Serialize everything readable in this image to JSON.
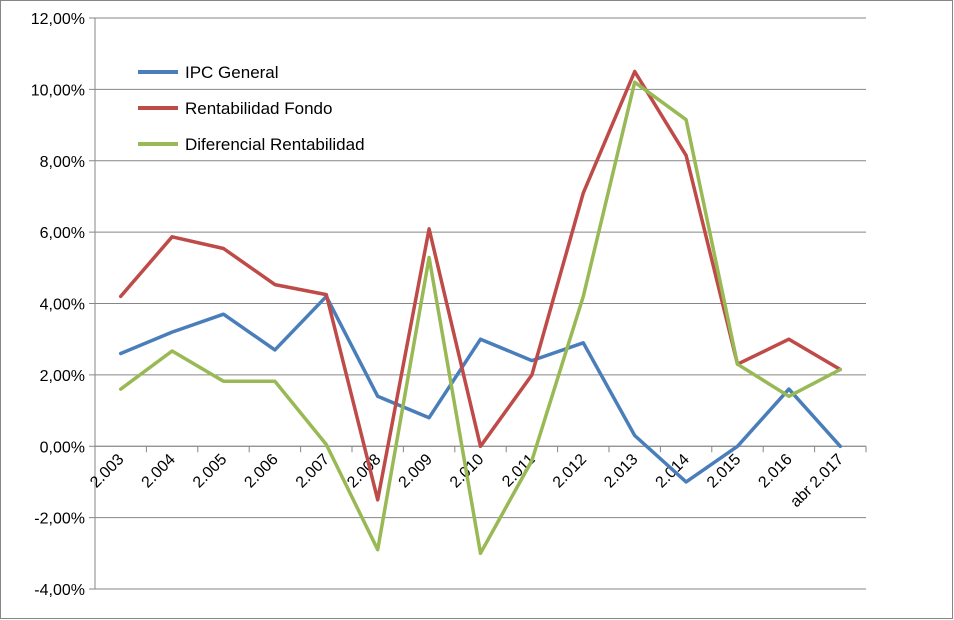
{
  "chart_data": {
    "type": "line",
    "categories": [
      "2.003",
      "2.004",
      "2.005",
      "2.006",
      "2.007",
      "2.008",
      "2.009",
      "2.010",
      "2.011",
      "2.012",
      "2.013",
      "2.014",
      "2.015",
      "2.016",
      "abr 2.017"
    ],
    "series": [
      {
        "name": "IPC General",
        "color": "#4a7ebb",
        "values": [
          2.6,
          3.2,
          3.7,
          2.7,
          4.2,
          1.4,
          0.8,
          3.0,
          2.4,
          2.9,
          0.3,
          -1.0,
          0.0,
          1.6,
          0.0
        ]
      },
      {
        "name": "Rentabilidad Fondo",
        "color": "#be4b48",
        "values": [
          4.2,
          5.87,
          5.54,
          4.53,
          4.25,
          -1.5,
          6.09,
          0.0,
          2.0,
          7.1,
          10.5,
          8.15,
          2.3,
          3.0,
          2.15
        ]
      },
      {
        "name": "Diferencial Rentabilidad",
        "color": "#98b954",
        "values": [
          1.6,
          2.67,
          1.82,
          1.82,
          0.05,
          -2.9,
          5.29,
          -3.0,
          -0.4,
          4.2,
          10.2,
          9.15,
          2.3,
          1.4,
          2.15
        ]
      }
    ],
    "y_ticks": [
      "12,00%",
      "10,00%",
      "8,00%",
      "6,00%",
      "4,00%",
      "2,00%",
      "0,00%",
      "-2,00%",
      "-4,00%"
    ],
    "ylim": [
      -4,
      12
    ],
    "grid": true,
    "legend_position": "top-left"
  }
}
